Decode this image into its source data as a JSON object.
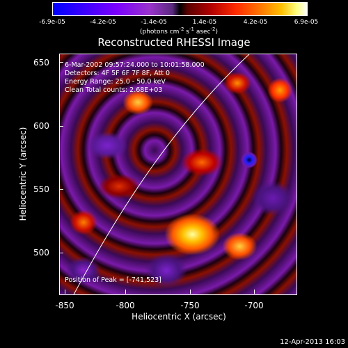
{
  "colorbar": {
    "ticks": [
      "-6.9e-05",
      "-4.2e-05",
      "-1.4e-05",
      "1.4e-05",
      "4.2e-05",
      "6.9e-05"
    ],
    "units_text": "(photons cm",
    "units_sup1": "-2",
    "units_mid": " s",
    "units_sup2": "-1",
    "units_mid2": " asec",
    "units_sup3": "-2",
    "units_end": ")"
  },
  "title": "Reconstructed RHESSI Image",
  "info": {
    "time_range": "6-Mar-2002 09:57:24.000 to 10:01:58.000",
    "detectors": "Detectors: 4F 5F 6F 7F 8F, Att 0",
    "energy": "Energy Range: 25.0 - 50.0 keV",
    "clean": "Clean     Total counts: 2.68E+03",
    "peak": "Position of Peak = [-741,523]"
  },
  "axes": {
    "xlabel": "Heliocentric X (arcsec)",
    "ylabel": "Heliocentric Y (arcsec)",
    "xticks": [
      "-850",
      "-800",
      "-750",
      "-700"
    ],
    "yticks": [
      "650",
      "600",
      "550",
      "500"
    ],
    "xlim": [
      -855,
      -665
    ],
    "ylim": [
      465,
      660
    ]
  },
  "timestamp": "12-Apr-2013 16:03"
}
